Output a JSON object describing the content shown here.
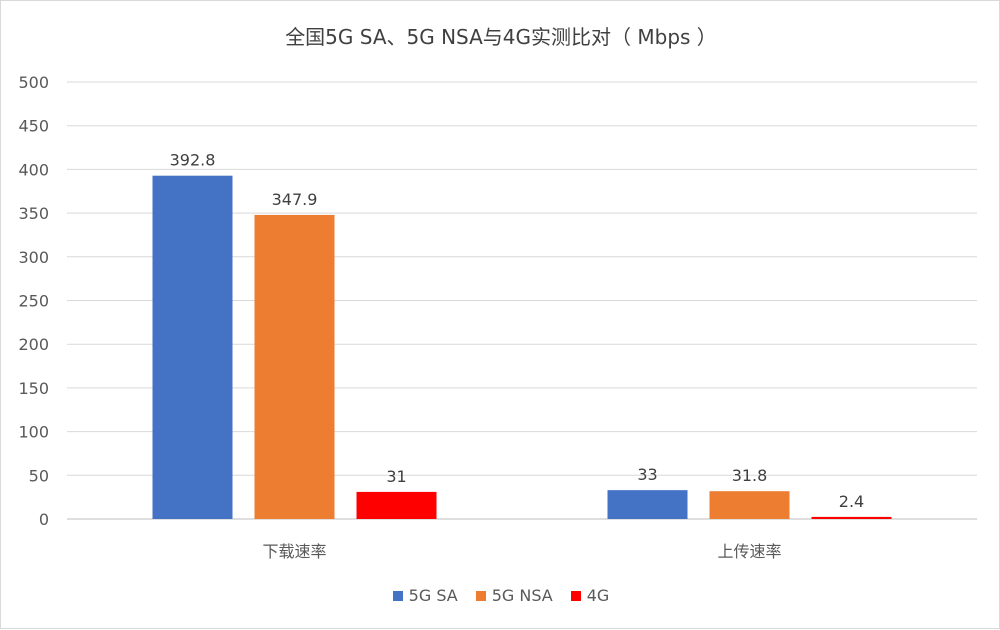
{
  "chart_data": {
    "type": "bar",
    "title": "全国5G SA、5G NSA与4G实测比对（ Mbps ）",
    "categories": [
      "下载速率",
      "上传速率"
    ],
    "series": [
      {
        "name": "5G SA",
        "values": [
          392.8,
          33
        ],
        "labels": [
          "392.8",
          "33"
        ],
        "color": "#4472c4"
      },
      {
        "name": "5G NSA",
        "values": [
          347.9,
          31.8
        ],
        "labels": [
          "347.9",
          "31.8"
        ],
        "color": "#ed7d31"
      },
      {
        "name": "4G",
        "values": [
          31,
          2.4
        ],
        "labels": [
          "31",
          "2.4"
        ],
        "color": "#ff0000"
      }
    ],
    "ylim": [
      0,
      500
    ],
    "yticks": [
      "0",
      "50",
      "100",
      "150",
      "200",
      "250",
      "300",
      "350",
      "400",
      "450",
      "500"
    ],
    "grid": true,
    "legend_position": "bottom"
  }
}
